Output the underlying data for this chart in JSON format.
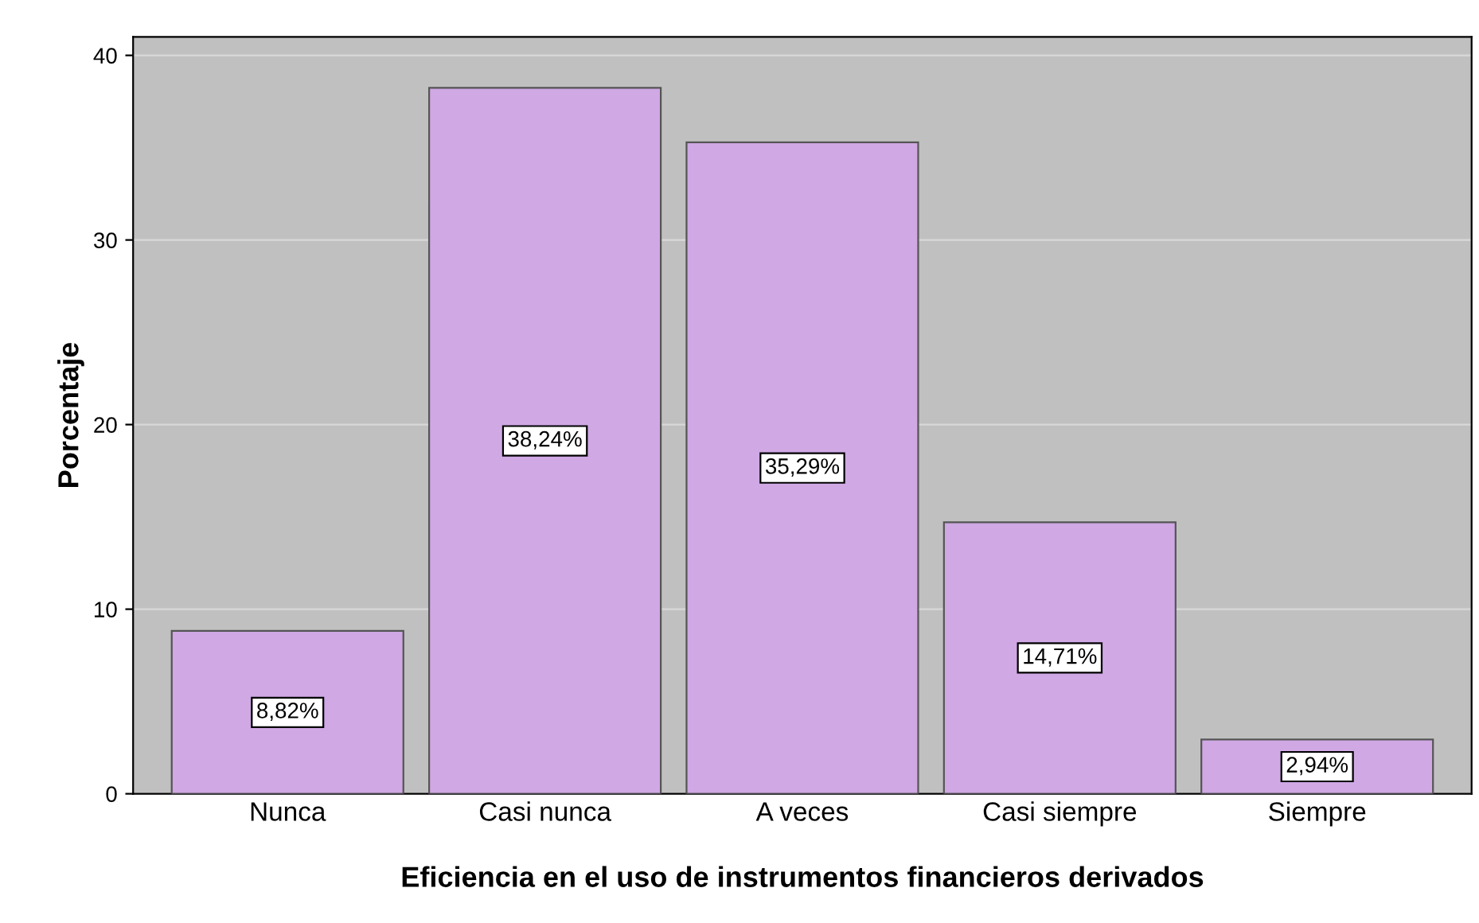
{
  "chart_data": {
    "type": "bar",
    "xlabel": "Eficiencia en el uso de instrumentos financieros derivados",
    "ylabel": "Porcentaje",
    "categories": [
      "Nunca",
      "Casi nunca",
      "A veces",
      "Casi siempre",
      "Siempre"
    ],
    "values": [
      8.82,
      38.24,
      35.29,
      14.71,
      2.94
    ],
    "value_labels": [
      "8,82%",
      "38,24%",
      "35,29%",
      "14,71%",
      "2,94%"
    ],
    "color": "#cfa8e4",
    "ylim": [
      0,
      41
    ],
    "yticks": [
      0,
      10,
      20,
      30,
      40
    ],
    "grid": "y"
  }
}
